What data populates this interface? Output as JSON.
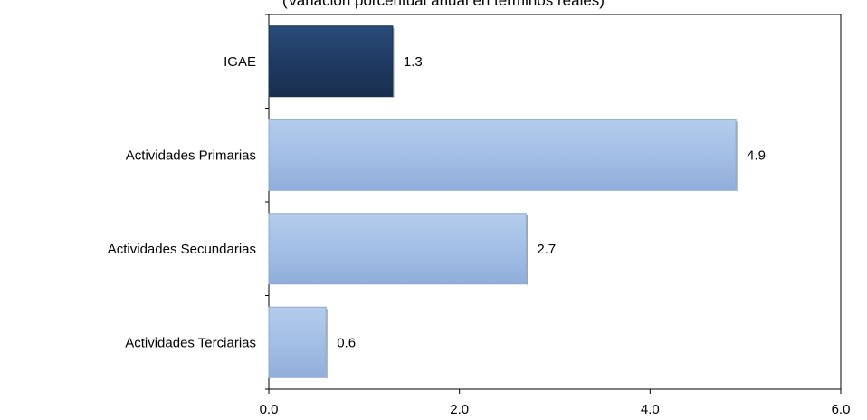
{
  "chart_data": {
    "type": "bar",
    "orientation": "horizontal",
    "subtitle": "(Variación porcentual anual en términos reales)",
    "categories": [
      "IGAE",
      "Actividades  Primarias",
      "Actividades Secundarias",
      "Actividades Terciarias"
    ],
    "values": [
      1.3,
      4.9,
      2.7,
      0.6
    ],
    "data_labels": [
      "1.3",
      "4.9",
      "2.7",
      "0.6"
    ],
    "xlim": [
      0,
      6
    ],
    "x_ticks": [
      "0.0",
      "2.0",
      "4.0",
      "6.0"
    ],
    "grid": false,
    "legend": false,
    "colors": {
      "highlight": "#1F3B63",
      "bar": "#A3BFE5",
      "bar_edge": "#8CA8CF",
      "frame": "#000000"
    },
    "highlight_index": 0
  }
}
